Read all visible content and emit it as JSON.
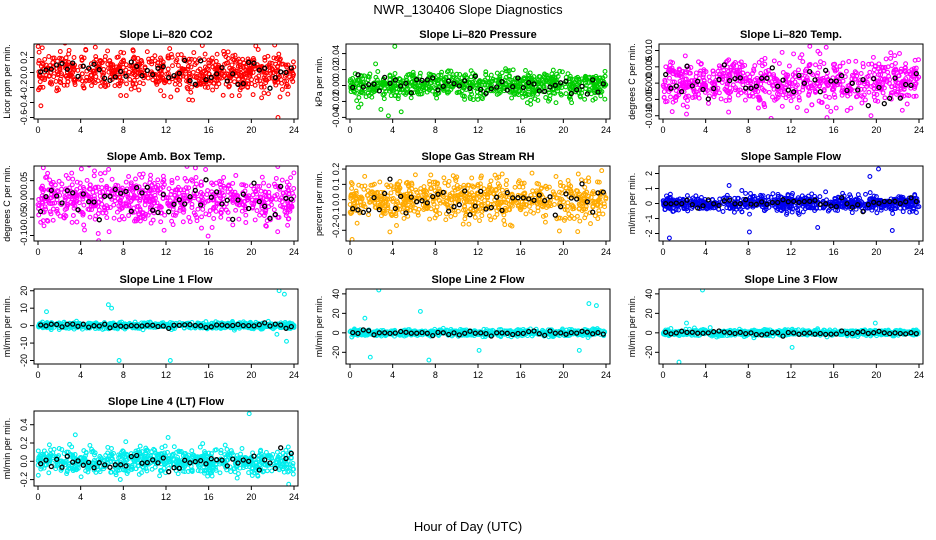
{
  "figure": {
    "title": "NWR_130406  Slope Diagnostics",
    "xlabel": "Hour of Day (UTC)"
  },
  "chart_data": [
    {
      "type": "scatter",
      "title": "Slope Li–820 CO2",
      "ylabel": "Licor ppm per min.",
      "xlim": [
        0,
        24
      ],
      "xticks": [
        0,
        4,
        8,
        12,
        16,
        20,
        24
      ],
      "ylim": [
        -0.62,
        0.38
      ],
      "yticks": [
        -0.6,
        -0.4,
        -0.2,
        0.0,
        0.2
      ],
      "ytick_labels": [
        "-0.6",
        "-0.4",
        "-0.2",
        "0.0",
        "0.2"
      ],
      "color": "#ff0000",
      "spread": 0.17,
      "outliers": [
        [
          22.5,
          -0.6
        ],
        [
          0.4,
          0.33
        ],
        [
          15.4,
          0.36
        ]
      ]
    },
    {
      "type": "scatter",
      "title": "Slope Li–820 Pressure",
      "ylabel": "kPa per min.",
      "xlim": [
        0,
        24
      ],
      "xticks": [
        0,
        4,
        8,
        12,
        16,
        20,
        24
      ],
      "ylim": [
        -0.042,
        0.052
      ],
      "yticks": [
        -0.04,
        -0.02,
        0.0,
        0.02,
        0.04
      ],
      "ytick_labels": [
        "-0.04",
        "-0.02",
        "0.00",
        "0.02",
        "0.04"
      ],
      "color": "#00cc00",
      "spread": 0.011,
      "outliers": [
        [
          4.2,
          0.049
        ],
        [
          3.6,
          -0.038
        ],
        [
          2.9,
          -0.03
        ],
        [
          4.8,
          -0.033
        ],
        [
          2.4,
          0.027
        ]
      ]
    },
    {
      "type": "scatter",
      "title": "Slope Li–820 Temp.",
      "ylabel": "degrees C per min.",
      "xlim": [
        0,
        24
      ],
      "xticks": [
        0,
        4,
        8,
        12,
        16,
        20,
        24
      ],
      "ylim": [
        -0.011,
        0.012
      ],
      "yticks": [
        -0.01,
        -0.005,
        0.0,
        0.005,
        0.01
      ],
      "ytick_labels": [
        "-0.010",
        "-0.005",
        "0.000",
        "0.005",
        "0.010"
      ],
      "color": "#ff00ff",
      "spread": 0.0048,
      "outliers": [
        [
          15.3,
          0.011
        ],
        [
          2.2,
          -0.0095
        ],
        [
          19.5,
          -0.01
        ]
      ]
    },
    {
      "type": "scatter",
      "title": "Slope Amb. Box Temp.",
      "ylabel": "degrees C per min.",
      "xlim": [
        0,
        24
      ],
      "xticks": [
        0,
        4,
        8,
        12,
        16,
        20,
        24
      ],
      "ylim": [
        -0.115,
        0.09
      ],
      "yticks": [
        -0.1,
        -0.05,
        0.0,
        0.05
      ],
      "ytick_labels": [
        "-0.10",
        "-0.05",
        "0.00",
        "0.05"
      ],
      "color": "#ff00ff",
      "spread": 0.045,
      "outliers": [
        [
          0.5,
          0.085
        ],
        [
          0.9,
          0.07
        ]
      ]
    },
    {
      "type": "scatter",
      "title": "Slope Gas Stream RH",
      "ylabel": "percent per min.",
      "xlim": [
        0,
        24
      ],
      "xticks": [
        0,
        4,
        8,
        12,
        16,
        20,
        24
      ],
      "ylim": [
        -0.27,
        0.22
      ],
      "yticks": [
        -0.2,
        -0.1,
        0.0,
        0.1,
        0.2
      ],
      "ytick_labels": [
        "-0.2",
        "-0.1",
        "0.0",
        "0.1",
        "0.2"
      ],
      "color": "#ffaa00",
      "spread": 0.09,
      "outliers": [
        [
          0.2,
          -0.26
        ],
        [
          23.6,
          0.19
        ]
      ]
    },
    {
      "type": "scatter",
      "title": "Slope Sample Flow",
      "ylabel": "ml/min per min.",
      "xlim": [
        0,
        24
      ],
      "xticks": [
        0,
        4,
        8,
        12,
        16,
        20,
        24
      ],
      "ylim": [
        -2.5,
        2.5
      ],
      "yticks": [
        -2,
        -1,
        0,
        1,
        2
      ],
      "ytick_labels": [
        "-2",
        "-1",
        "0",
        "1",
        "2"
      ],
      "color": "#0000ee",
      "spread": 0.35,
      "outliers": [
        [
          20.2,
          2.3
        ],
        [
          19.4,
          1.8
        ],
        [
          8.1,
          -1.9
        ],
        [
          14.5,
          -1.6
        ],
        [
          21.5,
          -1.8
        ],
        [
          0.6,
          -2.3
        ],
        [
          6.2,
          1.2
        ]
      ]
    },
    {
      "type": "scatter",
      "title": "Slope Line 1 Flow",
      "ylabel": "ml/min per min.",
      "xlim": [
        0,
        24
      ],
      "xticks": [
        0,
        4,
        8,
        12,
        16,
        20,
        24
      ],
      "ylim": [
        -22,
        21
      ],
      "yticks": [
        -20,
        -10,
        0,
        10,
        20
      ],
      "ytick_labels": [
        "-20",
        "-10",
        "0",
        "10",
        "20"
      ],
      "color": "#00eeee",
      "spread": 1.2,
      "outliers": [
        [
          22.6,
          20
        ],
        [
          23.1,
          18
        ],
        [
          7.6,
          -20
        ],
        [
          12.4,
          -20
        ],
        [
          6.6,
          12
        ],
        [
          6.9,
          10
        ],
        [
          22.4,
          -5
        ],
        [
          23.3,
          -9
        ],
        [
          0.8,
          8
        ]
      ]
    },
    {
      "type": "scatter",
      "title": "Slope Line 2 Flow",
      "ylabel": "ml/min per min.",
      "xlim": [
        0,
        24
      ],
      "xticks": [
        0,
        4,
        8,
        12,
        16,
        20,
        24
      ],
      "ylim": [
        -32,
        45
      ],
      "yticks": [
        -20,
        0,
        20,
        40
      ],
      "ytick_labels": [
        "-20",
        "0",
        "20",
        "40"
      ],
      "color": "#00eeee",
      "spread": 2.2,
      "outliers": [
        [
          2.7,
          44
        ],
        [
          22.4,
          30
        ],
        [
          23.1,
          28
        ],
        [
          6.6,
          22
        ],
        [
          1.4,
          15
        ],
        [
          12.1,
          -18
        ],
        [
          21.5,
          -18
        ],
        [
          7.4,
          -28
        ],
        [
          1.9,
          -25
        ]
      ]
    },
    {
      "type": "scatter",
      "title": "Slope Line 3 Flow",
      "ylabel": "ml/min per min.",
      "xlim": [
        0,
        24
      ],
      "xticks": [
        0,
        4,
        8,
        12,
        16,
        20,
        24
      ],
      "ylim": [
        -32,
        45
      ],
      "yticks": [
        -20,
        0,
        20,
        40
      ],
      "ytick_labels": [
        "-20",
        "0",
        "20",
        "40"
      ],
      "color": "#00eeee",
      "spread": 2.0,
      "outliers": [
        [
          3.7,
          44
        ],
        [
          2.2,
          10
        ],
        [
          12.1,
          -15
        ],
        [
          19.9,
          10
        ],
        [
          1.5,
          -30
        ]
      ]
    },
    {
      "type": "scatter",
      "title": "Slope Line 4 (LT) Flow",
      "ylabel": "ml/min per min.",
      "xlim": [
        0,
        24
      ],
      "xticks": [
        0,
        4,
        8,
        12,
        16,
        20,
        24
      ],
      "ylim": [
        -0.27,
        0.55
      ],
      "yticks": [
        -0.2,
        0.0,
        0.2,
        0.4
      ],
      "ytick_labels": [
        "-0.2",
        "0.0",
        "0.2",
        "0.4"
      ],
      "color": "#00eeee",
      "spread": 0.09,
      "outliers": [
        [
          19.8,
          0.52
        ],
        [
          3.5,
          0.29
        ],
        [
          12.2,
          0.26
        ],
        [
          23.5,
          -0.25
        ]
      ]
    }
  ]
}
